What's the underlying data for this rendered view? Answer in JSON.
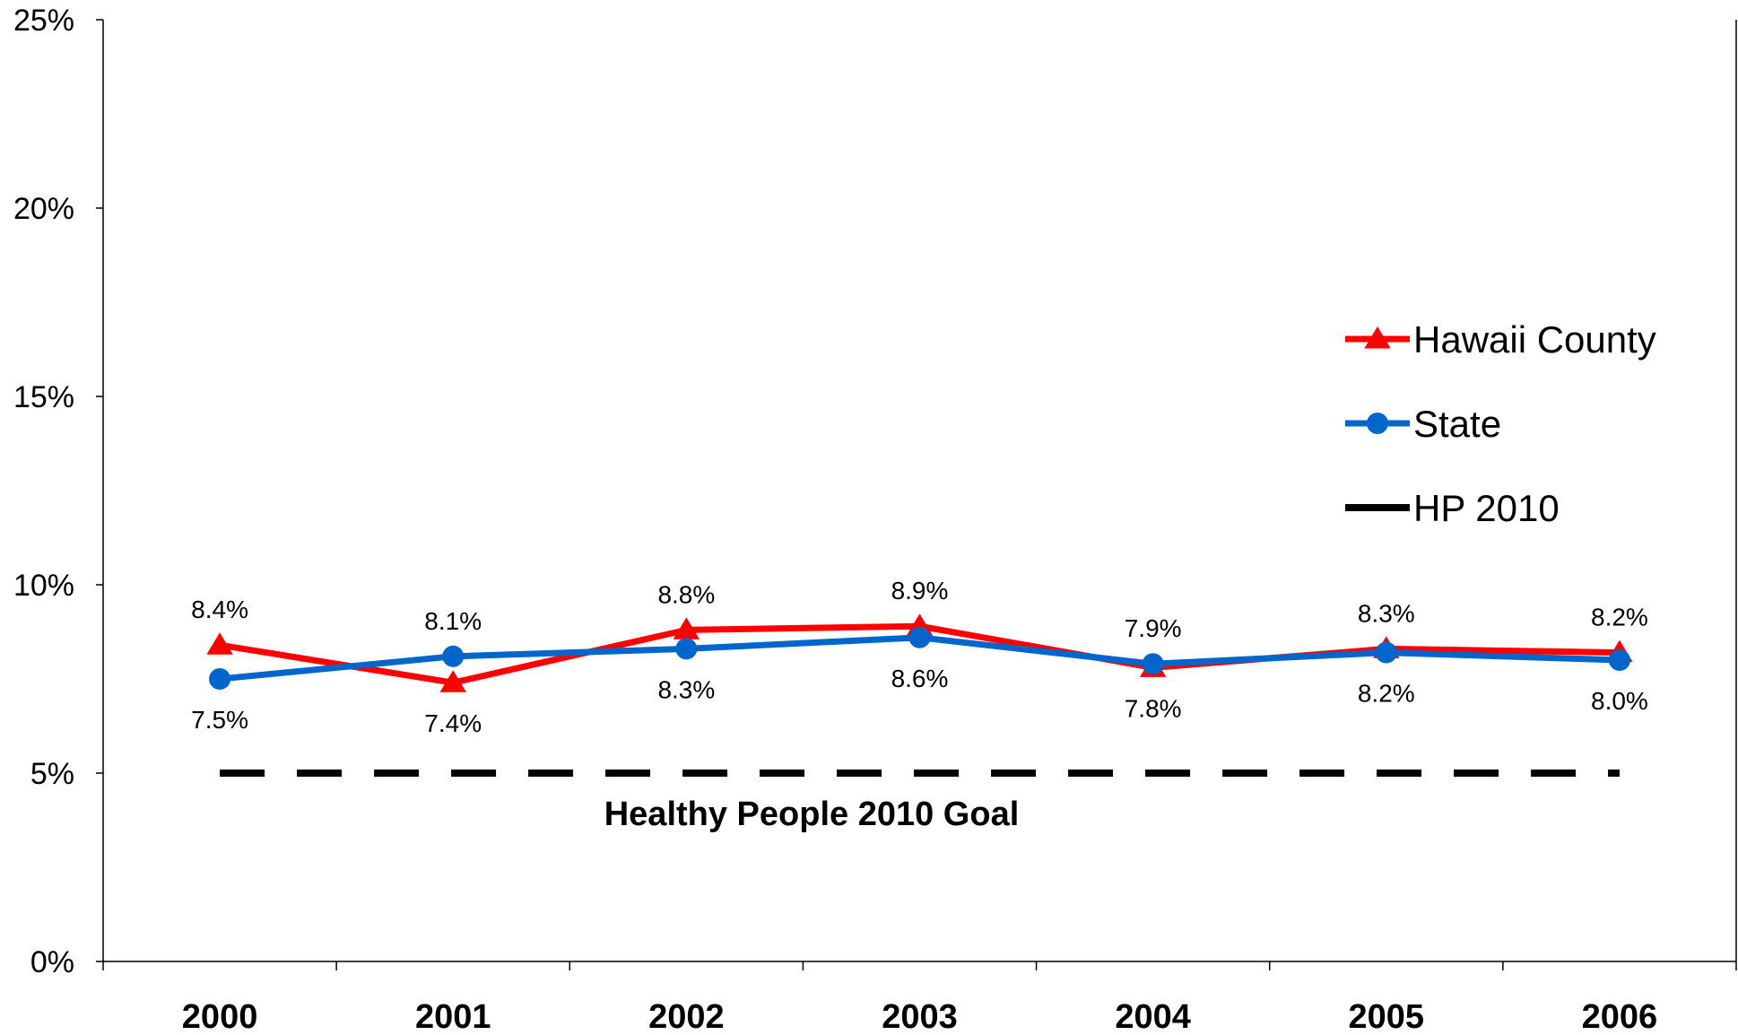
{
  "chart_data": {
    "type": "line",
    "categories": [
      "2000",
      "2001",
      "2002",
      "2003",
      "2004",
      "2005",
      "2006"
    ],
    "y_ticks": [
      "0%",
      "5%",
      "10%",
      "15%",
      "20%",
      "25%"
    ],
    "ylim": [
      0,
      25
    ],
    "grid": false,
    "legend_position": "right",
    "series": [
      {
        "name": "Hawaii County",
        "values": [
          8.4,
          7.4,
          8.8,
          8.9,
          7.8,
          8.3,
          8.2
        ],
        "labels": [
          "8.4%",
          "7.4%",
          "8.8%",
          "8.9%",
          "7.8%",
          "8.3%",
          "8.2%"
        ],
        "color": "#ff0000",
        "marker": "triangle"
      },
      {
        "name": "State",
        "values": [
          7.5,
          8.1,
          8.3,
          8.6,
          7.9,
          8.2,
          8.0
        ],
        "labels": [
          "7.5%",
          "8.1%",
          "8.3%",
          "8.6%",
          "7.9%",
          "8.2%",
          "8.0%"
        ],
        "color": "#0066cc",
        "marker": "circle"
      },
      {
        "name": "HP 2010",
        "values": [
          5,
          5,
          5,
          5,
          5,
          5,
          5
        ],
        "color": "#000000",
        "marker": "none",
        "dashed": true
      }
    ],
    "annotations": [
      {
        "text": "Healthy People 2010 Goal"
      }
    ]
  }
}
